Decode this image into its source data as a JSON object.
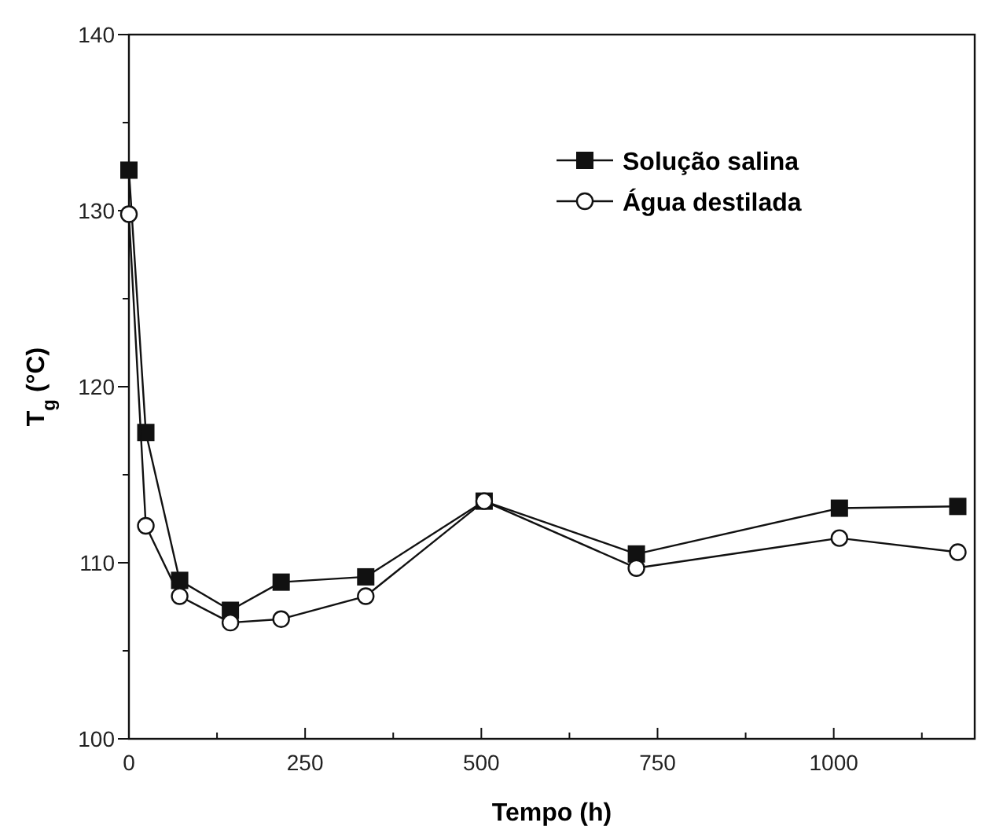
{
  "chart_data": {
    "type": "line",
    "xlabel": "Tempo (h)",
    "ylabel": "T$_{g}$ (°C)",
    "x": [
      0,
      24,
      72,
      144,
      216,
      336,
      504,
      720,
      1008,
      1176
    ],
    "series": [
      {
        "name": "Solução salina",
        "color": "#111111",
        "marker": "square",
        "values": [
          132.3,
          117.4,
          109.0,
          107.3,
          108.9,
          109.2,
          113.5,
          110.5,
          113.1,
          113.2
        ]
      },
      {
        "name": "Água destilada",
        "color": "#111111",
        "marker": "circle",
        "values": [
          129.8,
          112.1,
          108.1,
          106.6,
          106.8,
          108.1,
          113.5,
          109.7,
          111.4,
          110.6
        ]
      }
    ],
    "xlim": [
      0,
      1200
    ],
    "xticks": [
      0,
      {
        "value": 125,
        "label": null
      },
      250,
      {
        "value": 375,
        "label": null
      },
      500,
      {
        "value": 625,
        "label": null
      },
      750,
      {
        "value": 875,
        "label": null
      },
      1000,
      {
        "value": 1125,
        "label": null
      }
    ],
    "ylim": [
      100,
      140
    ],
    "yticks": [
      100,
      {
        "value": 105,
        "label": null
      },
      110,
      {
        "value": 115,
        "label": null
      },
      120,
      {
        "value": 125,
        "label": null
      },
      130,
      {
        "value": 135,
        "label": null
      },
      140
    ],
    "grid": false,
    "legend": "top right",
    "line_style": "solid"
  }
}
